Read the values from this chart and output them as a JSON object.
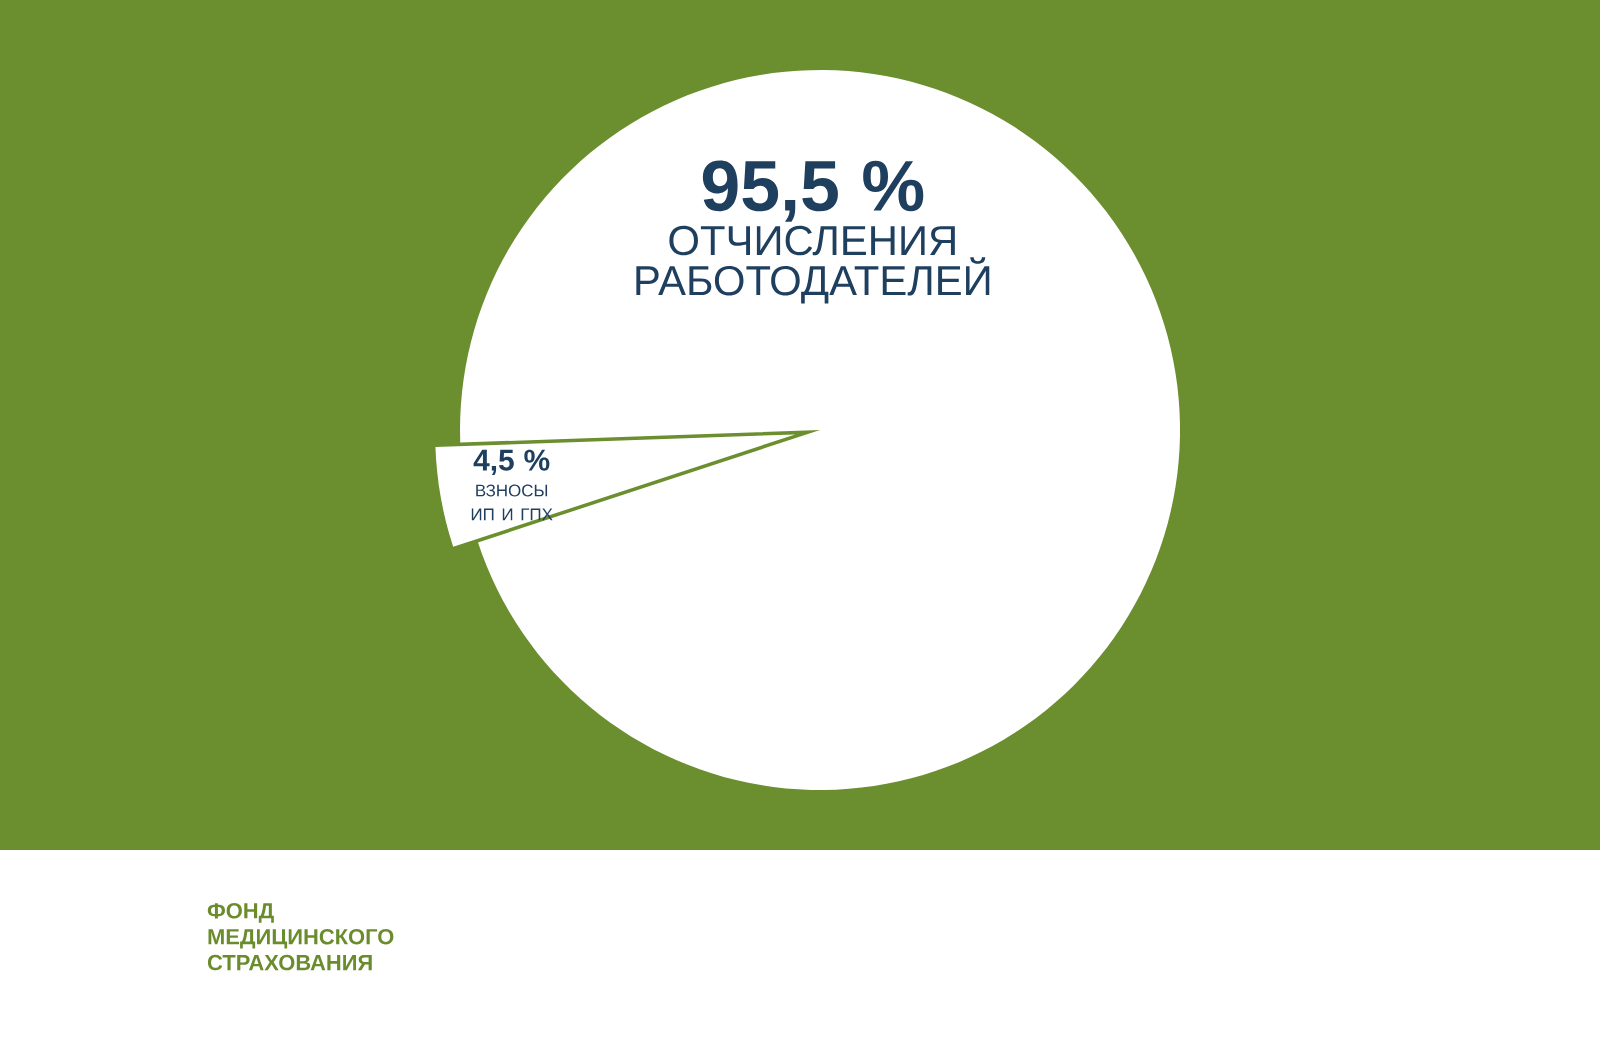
{
  "chart_data": {
    "type": "pie",
    "categories": [
      "ОТЧИСЛЕНИЯ РАБОТОДАТЕЛЕЙ",
      "ВЗНОСЫ ИП И ГПХ"
    ],
    "values": [
      95.5,
      4.5
    ],
    "colors": [
      "#ffffff",
      "#ffffff"
    ],
    "value_labels": [
      "95,5 %",
      "4,5 %"
    ],
    "annotations": [
      "ФОНД МЕДИЦИНСКОГО СТРАХОВАНИЯ"
    ]
  }
}
